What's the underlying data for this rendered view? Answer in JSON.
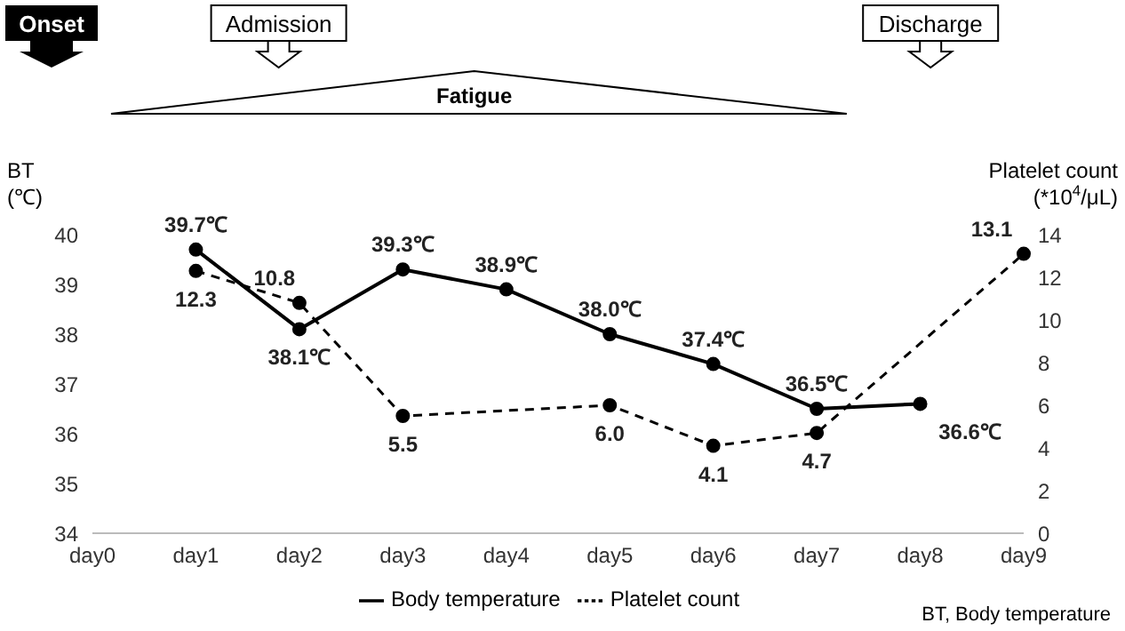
{
  "chart_data": {
    "type": "line",
    "categories": [
      "day0",
      "day1",
      "day2",
      "day3",
      "day4",
      "day5",
      "day6",
      "day7",
      "day8",
      "day9"
    ],
    "ylabel": "BT (℃)",
    "y2label": "Platelet count (*10$^{4}$/μL)",
    "ylim": [
      34,
      40
    ],
    "yticks": [
      34,
      35,
      36,
      37,
      38,
      39,
      40
    ],
    "y2lim": [
      0,
      14
    ],
    "y2ticks": [
      0,
      2,
      4,
      6,
      8,
      10,
      12,
      14
    ],
    "series": [
      {
        "name": "Body temperature",
        "color": "#000000",
        "line_style": "solid",
        "values": [
          null,
          39.7,
          38.1,
          39.3,
          38.9,
          38.0,
          37.4,
          36.5,
          36.6,
          null
        ],
        "value_labels": [
          null,
          "39.7℃",
          "38.1℃",
          "39.3℃",
          "38.9℃",
          "38.0℃",
          "37.4℃",
          "36.5℃",
          "36.6℃",
          null
        ]
      },
      {
        "name": "Platelet count",
        "color": "#000000",
        "line_style": "dashed",
        "axis": "y2",
        "values": [
          null,
          12.3,
          10.8,
          5.5,
          null,
          6.0,
          4.1,
          4.7,
          null,
          13.1
        ],
        "value_labels": [
          null,
          "12.3",
          "10.8",
          "5.5",
          null,
          "6.0",
          "4.1",
          "4.7",
          null,
          "13.1"
        ]
      }
    ],
    "marker": "circle",
    "legend": "bottom",
    "annotations": [
      "Onset",
      "Admission",
      "Fatigue",
      "Discharge",
      "BT, Body temperature"
    ]
  }
}
